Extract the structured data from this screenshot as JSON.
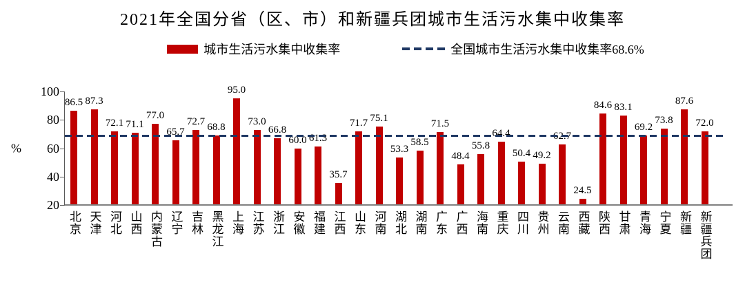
{
  "title": "2021年全国分省（区、市）和新疆兵团城市生活污水集中收集率",
  "legend": {
    "bar_label": "城市生活污水集中收集率",
    "line_label": "全国城市生活污水集中收集率68.6%"
  },
  "colors": {
    "bar": "#C00000",
    "dash_line": "#1F3864",
    "axis_left": "#595959",
    "axis_bottom": "#808080",
    "text": "#000000"
  },
  "chart_data": {
    "type": "bar",
    "title": "2021年全国分省（区、市）和新疆兵团城市生活污水集中收集率",
    "categories": [
      "北京",
      "天津",
      "河北",
      "山西",
      "内蒙古",
      "辽宁",
      "吉林",
      "黑龙江",
      "上海",
      "江苏",
      "浙江",
      "安徽",
      "福建",
      "江西",
      "山东",
      "河南",
      "湖北",
      "湖南",
      "广东",
      "广西",
      "海南",
      "重庆",
      "四川",
      "贵州",
      "云南",
      "西藏",
      "陕西",
      "甘肃",
      "青海",
      "宁夏",
      "新疆",
      "新疆兵团"
    ],
    "values": [
      86.5,
      87.3,
      72.1,
      71.1,
      77.0,
      65.7,
      72.7,
      68.8,
      95.0,
      73.0,
      66.8,
      60.0,
      61.3,
      35.7,
      71.7,
      75.1,
      53.3,
      58.5,
      71.5,
      48.4,
      55.8,
      64.4,
      50.4,
      49.2,
      62.7,
      24.5,
      84.6,
      83.1,
      69.2,
      73.8,
      87.6,
      72.0
    ],
    "series_name": "城市生活污水集中收集率",
    "reference_line": {
      "label": "全国城市生活污水集中收集率",
      "value": 68.6
    },
    "ylabel": "%",
    "ylim": [
      20,
      100
    ],
    "yticks": [
      20,
      40,
      60,
      80,
      100
    ],
    "grid": false,
    "legend_position": "top",
    "value_labels": true,
    "value_label_format": "one-decimal"
  }
}
